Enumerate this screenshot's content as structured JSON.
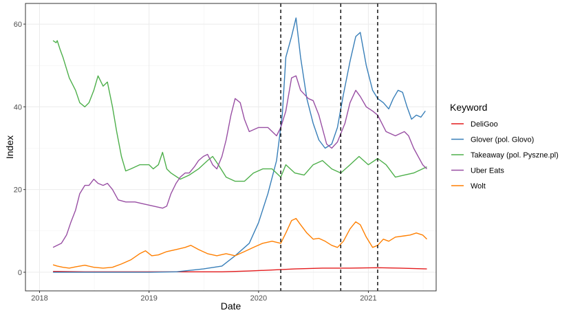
{
  "chart_data": {
    "type": "line",
    "xlabel": "Date",
    "ylabel": "Index",
    "x_range": [
      "2017-11-15",
      "2021-08-15"
    ],
    "ylim": [
      -4.5,
      65
    ],
    "x_ticks": [
      {
        "date": "2018-01-01",
        "label": "2018"
      },
      {
        "date": "2019-01-01",
        "label": "2019"
      },
      {
        "date": "2020-01-01",
        "label": "2020"
      },
      {
        "date": "2021-01-01",
        "label": "2021"
      }
    ],
    "y_ticks": [
      0,
      20,
      40,
      60
    ],
    "grid": true,
    "legend": {
      "title": "Keyword",
      "position": "right"
    },
    "vlines": [
      "2020-03-15",
      "2020-10-01",
      "2021-02-01"
    ],
    "series": [
      {
        "name": "DeliGoo",
        "color": "#e41a1c",
        "points": [
          [
            "2018-02-15",
            0.2
          ],
          [
            "2018-06-01",
            0.1
          ],
          [
            "2018-10-01",
            0.1
          ],
          [
            "2019-03-01",
            0.1
          ],
          [
            "2019-09-01",
            0.1
          ],
          [
            "2019-12-01",
            0.3
          ],
          [
            "2020-02-01",
            0.5
          ],
          [
            "2020-05-01",
            0.8
          ],
          [
            "2020-08-01",
            1.0
          ],
          [
            "2020-11-01",
            1.0
          ],
          [
            "2021-02-01",
            1.1
          ],
          [
            "2021-04-15",
            1.0
          ],
          [
            "2021-07-15",
            0.8
          ]
        ]
      },
      {
        "name": "Glover (pol. Glovo)",
        "color": "#377eb8",
        "points": [
          [
            "2018-02-15",
            0
          ],
          [
            "2018-10-01",
            0
          ],
          [
            "2019-01-01",
            0
          ],
          [
            "2019-04-01",
            0.1
          ],
          [
            "2019-07-01",
            0.8
          ],
          [
            "2019-09-01",
            1.5
          ],
          [
            "2019-10-15",
            4
          ],
          [
            "2019-12-01",
            7
          ],
          [
            "2020-01-01",
            12
          ],
          [
            "2020-02-01",
            19
          ],
          [
            "2020-03-01",
            27
          ],
          [
            "2020-03-20",
            38
          ],
          [
            "2020-04-01",
            52
          ],
          [
            "2020-04-20",
            57
          ],
          [
            "2020-05-05",
            61.5
          ],
          [
            "2020-05-20",
            52
          ],
          [
            "2020-06-10",
            42
          ],
          [
            "2020-07-01",
            36
          ],
          [
            "2020-07-20",
            32
          ],
          [
            "2020-08-10",
            30
          ],
          [
            "2020-09-01",
            31
          ],
          [
            "2020-09-20",
            35
          ],
          [
            "2020-10-10",
            43
          ],
          [
            "2020-11-01",
            51
          ],
          [
            "2020-11-20",
            57
          ],
          [
            "2020-12-05",
            58
          ],
          [
            "2020-12-25",
            50
          ],
          [
            "2021-01-15",
            44
          ],
          [
            "2021-02-01",
            42
          ],
          [
            "2021-02-20",
            41
          ],
          [
            "2021-03-10",
            39.5
          ],
          [
            "2021-03-25",
            42
          ],
          [
            "2021-04-10",
            44
          ],
          [
            "2021-04-25",
            43.5
          ],
          [
            "2021-05-10",
            40
          ],
          [
            "2021-05-25",
            37
          ],
          [
            "2021-06-10",
            38
          ],
          [
            "2021-06-25",
            37.5
          ],
          [
            "2021-07-10",
            39
          ]
        ]
      },
      {
        "name": "Takeaway (pol. Pyszne.pl)",
        "color": "#4daf4a",
        "points": [
          [
            "2018-02-15",
            56
          ],
          [
            "2018-02-25",
            55.5
          ],
          [
            "2018-03-01",
            56
          ],
          [
            "2018-03-10",
            54
          ],
          [
            "2018-03-20",
            52
          ],
          [
            "2018-04-10",
            47
          ],
          [
            "2018-05-01",
            44
          ],
          [
            "2018-05-15",
            41
          ],
          [
            "2018-06-01",
            40
          ],
          [
            "2018-06-15",
            41
          ],
          [
            "2018-07-01",
            44
          ],
          [
            "2018-07-15",
            47.5
          ],
          [
            "2018-08-01",
            45
          ],
          [
            "2018-08-15",
            46
          ],
          [
            "2018-09-01",
            40
          ],
          [
            "2018-09-15",
            34
          ],
          [
            "2018-10-01",
            28
          ],
          [
            "2018-10-15",
            24.5
          ],
          [
            "2018-11-01",
            25
          ],
          [
            "2018-12-01",
            26
          ],
          [
            "2019-01-01",
            26
          ],
          [
            "2019-01-15",
            25
          ],
          [
            "2019-02-01",
            26
          ],
          [
            "2019-02-15",
            29
          ],
          [
            "2019-03-01",
            25
          ],
          [
            "2019-03-15",
            24
          ],
          [
            "2019-04-15",
            22.5
          ],
          [
            "2019-05-15",
            23.5
          ],
          [
            "2019-06-15",
            25
          ],
          [
            "2019-07-15",
            27
          ],
          [
            "2019-08-01",
            28
          ],
          [
            "2019-08-20",
            26
          ],
          [
            "2019-09-15",
            23
          ],
          [
            "2019-10-15",
            22
          ],
          [
            "2019-11-15",
            22
          ],
          [
            "2019-12-15",
            24
          ],
          [
            "2020-01-15",
            25
          ],
          [
            "2020-02-15",
            25
          ],
          [
            "2020-03-15",
            23
          ],
          [
            "2020-04-01",
            26
          ],
          [
            "2020-05-01",
            24
          ],
          [
            "2020-06-01",
            23.5
          ],
          [
            "2020-07-01",
            26
          ],
          [
            "2020-08-01",
            27
          ],
          [
            "2020-09-01",
            25
          ],
          [
            "2020-10-01",
            24
          ],
          [
            "2020-11-01",
            26
          ],
          [
            "2020-12-01",
            28
          ],
          [
            "2021-01-01",
            26
          ],
          [
            "2021-02-01",
            27.5
          ],
          [
            "2021-03-01",
            26
          ],
          [
            "2021-04-01",
            23
          ],
          [
            "2021-05-01",
            23.5
          ],
          [
            "2021-06-01",
            24
          ],
          [
            "2021-07-15",
            25.5
          ]
        ]
      },
      {
        "name": "Uber Eats",
        "color": "#984ea3",
        "points": [
          [
            "2018-02-15",
            6
          ],
          [
            "2018-03-01",
            6.5
          ],
          [
            "2018-03-15",
            7
          ],
          [
            "2018-04-01",
            9
          ],
          [
            "2018-04-15",
            12
          ],
          [
            "2018-05-01",
            15
          ],
          [
            "2018-05-15",
            19
          ],
          [
            "2018-06-01",
            21
          ],
          [
            "2018-06-15",
            21
          ],
          [
            "2018-07-01",
            22.5
          ],
          [
            "2018-07-15",
            21.5
          ],
          [
            "2018-08-01",
            21
          ],
          [
            "2018-08-15",
            21.5
          ],
          [
            "2018-09-01",
            20
          ],
          [
            "2018-09-20",
            17.5
          ],
          [
            "2018-10-15",
            17
          ],
          [
            "2018-11-15",
            17
          ],
          [
            "2018-12-15",
            16.5
          ],
          [
            "2019-01-15",
            16
          ],
          [
            "2019-02-15",
            15.5
          ],
          [
            "2019-03-01",
            16
          ],
          [
            "2019-03-15",
            19
          ],
          [
            "2019-04-01",
            21.5
          ],
          [
            "2019-04-15",
            23
          ],
          [
            "2019-05-01",
            24
          ],
          [
            "2019-05-15",
            24
          ],
          [
            "2019-06-01",
            25.5
          ],
          [
            "2019-06-15",
            27
          ],
          [
            "2019-07-01",
            28
          ],
          [
            "2019-07-15",
            28.5
          ],
          [
            "2019-08-01",
            26
          ],
          [
            "2019-08-15",
            25
          ],
          [
            "2019-09-01",
            28
          ],
          [
            "2019-09-15",
            32
          ],
          [
            "2019-10-01",
            38
          ],
          [
            "2019-10-15",
            42
          ],
          [
            "2019-11-01",
            41
          ],
          [
            "2019-11-15",
            37
          ],
          [
            "2019-12-01",
            34
          ],
          [
            "2020-01-01",
            35
          ],
          [
            "2020-02-01",
            35
          ],
          [
            "2020-03-01",
            33
          ],
          [
            "2020-03-15",
            35
          ],
          [
            "2020-04-01",
            39
          ],
          [
            "2020-04-20",
            47
          ],
          [
            "2020-05-05",
            47.5
          ],
          [
            "2020-05-20",
            44
          ],
          [
            "2020-06-15",
            42
          ],
          [
            "2020-07-01",
            41.5
          ],
          [
            "2020-07-20",
            38
          ],
          [
            "2020-08-15",
            31
          ],
          [
            "2020-09-01",
            30
          ],
          [
            "2020-09-20",
            31.5
          ],
          [
            "2020-10-15",
            36
          ],
          [
            "2020-11-01",
            41
          ],
          [
            "2020-11-20",
            44
          ],
          [
            "2020-12-05",
            42.5
          ],
          [
            "2020-12-25",
            40
          ],
          [
            "2021-01-15",
            39
          ],
          [
            "2021-02-01",
            38
          ],
          [
            "2021-03-01",
            34
          ],
          [
            "2021-04-01",
            33
          ],
          [
            "2021-05-01",
            34
          ],
          [
            "2021-05-15",
            33
          ],
          [
            "2021-06-01",
            30
          ],
          [
            "2021-07-01",
            26
          ],
          [
            "2021-07-15",
            25
          ]
        ]
      },
      {
        "name": "Wolt",
        "color": "#ff7f00",
        "points": [
          [
            "2018-02-15",
            1.8
          ],
          [
            "2018-03-01",
            1.5
          ],
          [
            "2018-03-20",
            1.2
          ],
          [
            "2018-04-10",
            1.0
          ],
          [
            "2018-05-01",
            1.3
          ],
          [
            "2018-06-01",
            1.7
          ],
          [
            "2018-07-01",
            1.2
          ],
          [
            "2018-08-01",
            1.0
          ],
          [
            "2018-09-01",
            1.2
          ],
          [
            "2018-10-01",
            2.0
          ],
          [
            "2018-11-01",
            3.0
          ],
          [
            "2018-12-01",
            4.5
          ],
          [
            "2018-12-20",
            5.2
          ],
          [
            "2019-01-10",
            4.0
          ],
          [
            "2019-02-01",
            4.2
          ],
          [
            "2019-03-01",
            5.0
          ],
          [
            "2019-04-01",
            5.5
          ],
          [
            "2019-05-01",
            6.0
          ],
          [
            "2019-05-20",
            6.5
          ],
          [
            "2019-06-15",
            5.5
          ],
          [
            "2019-07-15",
            4.5
          ],
          [
            "2019-08-15",
            4.0
          ],
          [
            "2019-09-15",
            4.5
          ],
          [
            "2019-10-15",
            4.0
          ],
          [
            "2019-11-15",
            5.0
          ],
          [
            "2019-12-15",
            6.0
          ],
          [
            "2020-01-15",
            7.0
          ],
          [
            "2020-02-15",
            7.5
          ],
          [
            "2020-03-15",
            7.0
          ],
          [
            "2020-04-01",
            9.5
          ],
          [
            "2020-04-20",
            12.5
          ],
          [
            "2020-05-05",
            13
          ],
          [
            "2020-05-20",
            11.5
          ],
          [
            "2020-06-10",
            9.5
          ],
          [
            "2020-07-01",
            8.0
          ],
          [
            "2020-07-20",
            8.2
          ],
          [
            "2020-08-10",
            7.5
          ],
          [
            "2020-09-01",
            6.5
          ],
          [
            "2020-09-20",
            6.0
          ],
          [
            "2020-10-10",
            7.5
          ],
          [
            "2020-11-01",
            10.5
          ],
          [
            "2020-11-20",
            12.2
          ],
          [
            "2020-12-05",
            11.5
          ],
          [
            "2020-12-25",
            8.5
          ],
          [
            "2021-01-15",
            6.0
          ],
          [
            "2021-02-01",
            6.5
          ],
          [
            "2021-02-20",
            8.0
          ],
          [
            "2021-03-10",
            7.5
          ],
          [
            "2021-04-01",
            8.5
          ],
          [
            "2021-05-01",
            8.8
          ],
          [
            "2021-05-20",
            9.0
          ],
          [
            "2021-06-10",
            9.5
          ],
          [
            "2021-07-01",
            9.0
          ],
          [
            "2021-07-15",
            8.0
          ]
        ]
      }
    ]
  }
}
